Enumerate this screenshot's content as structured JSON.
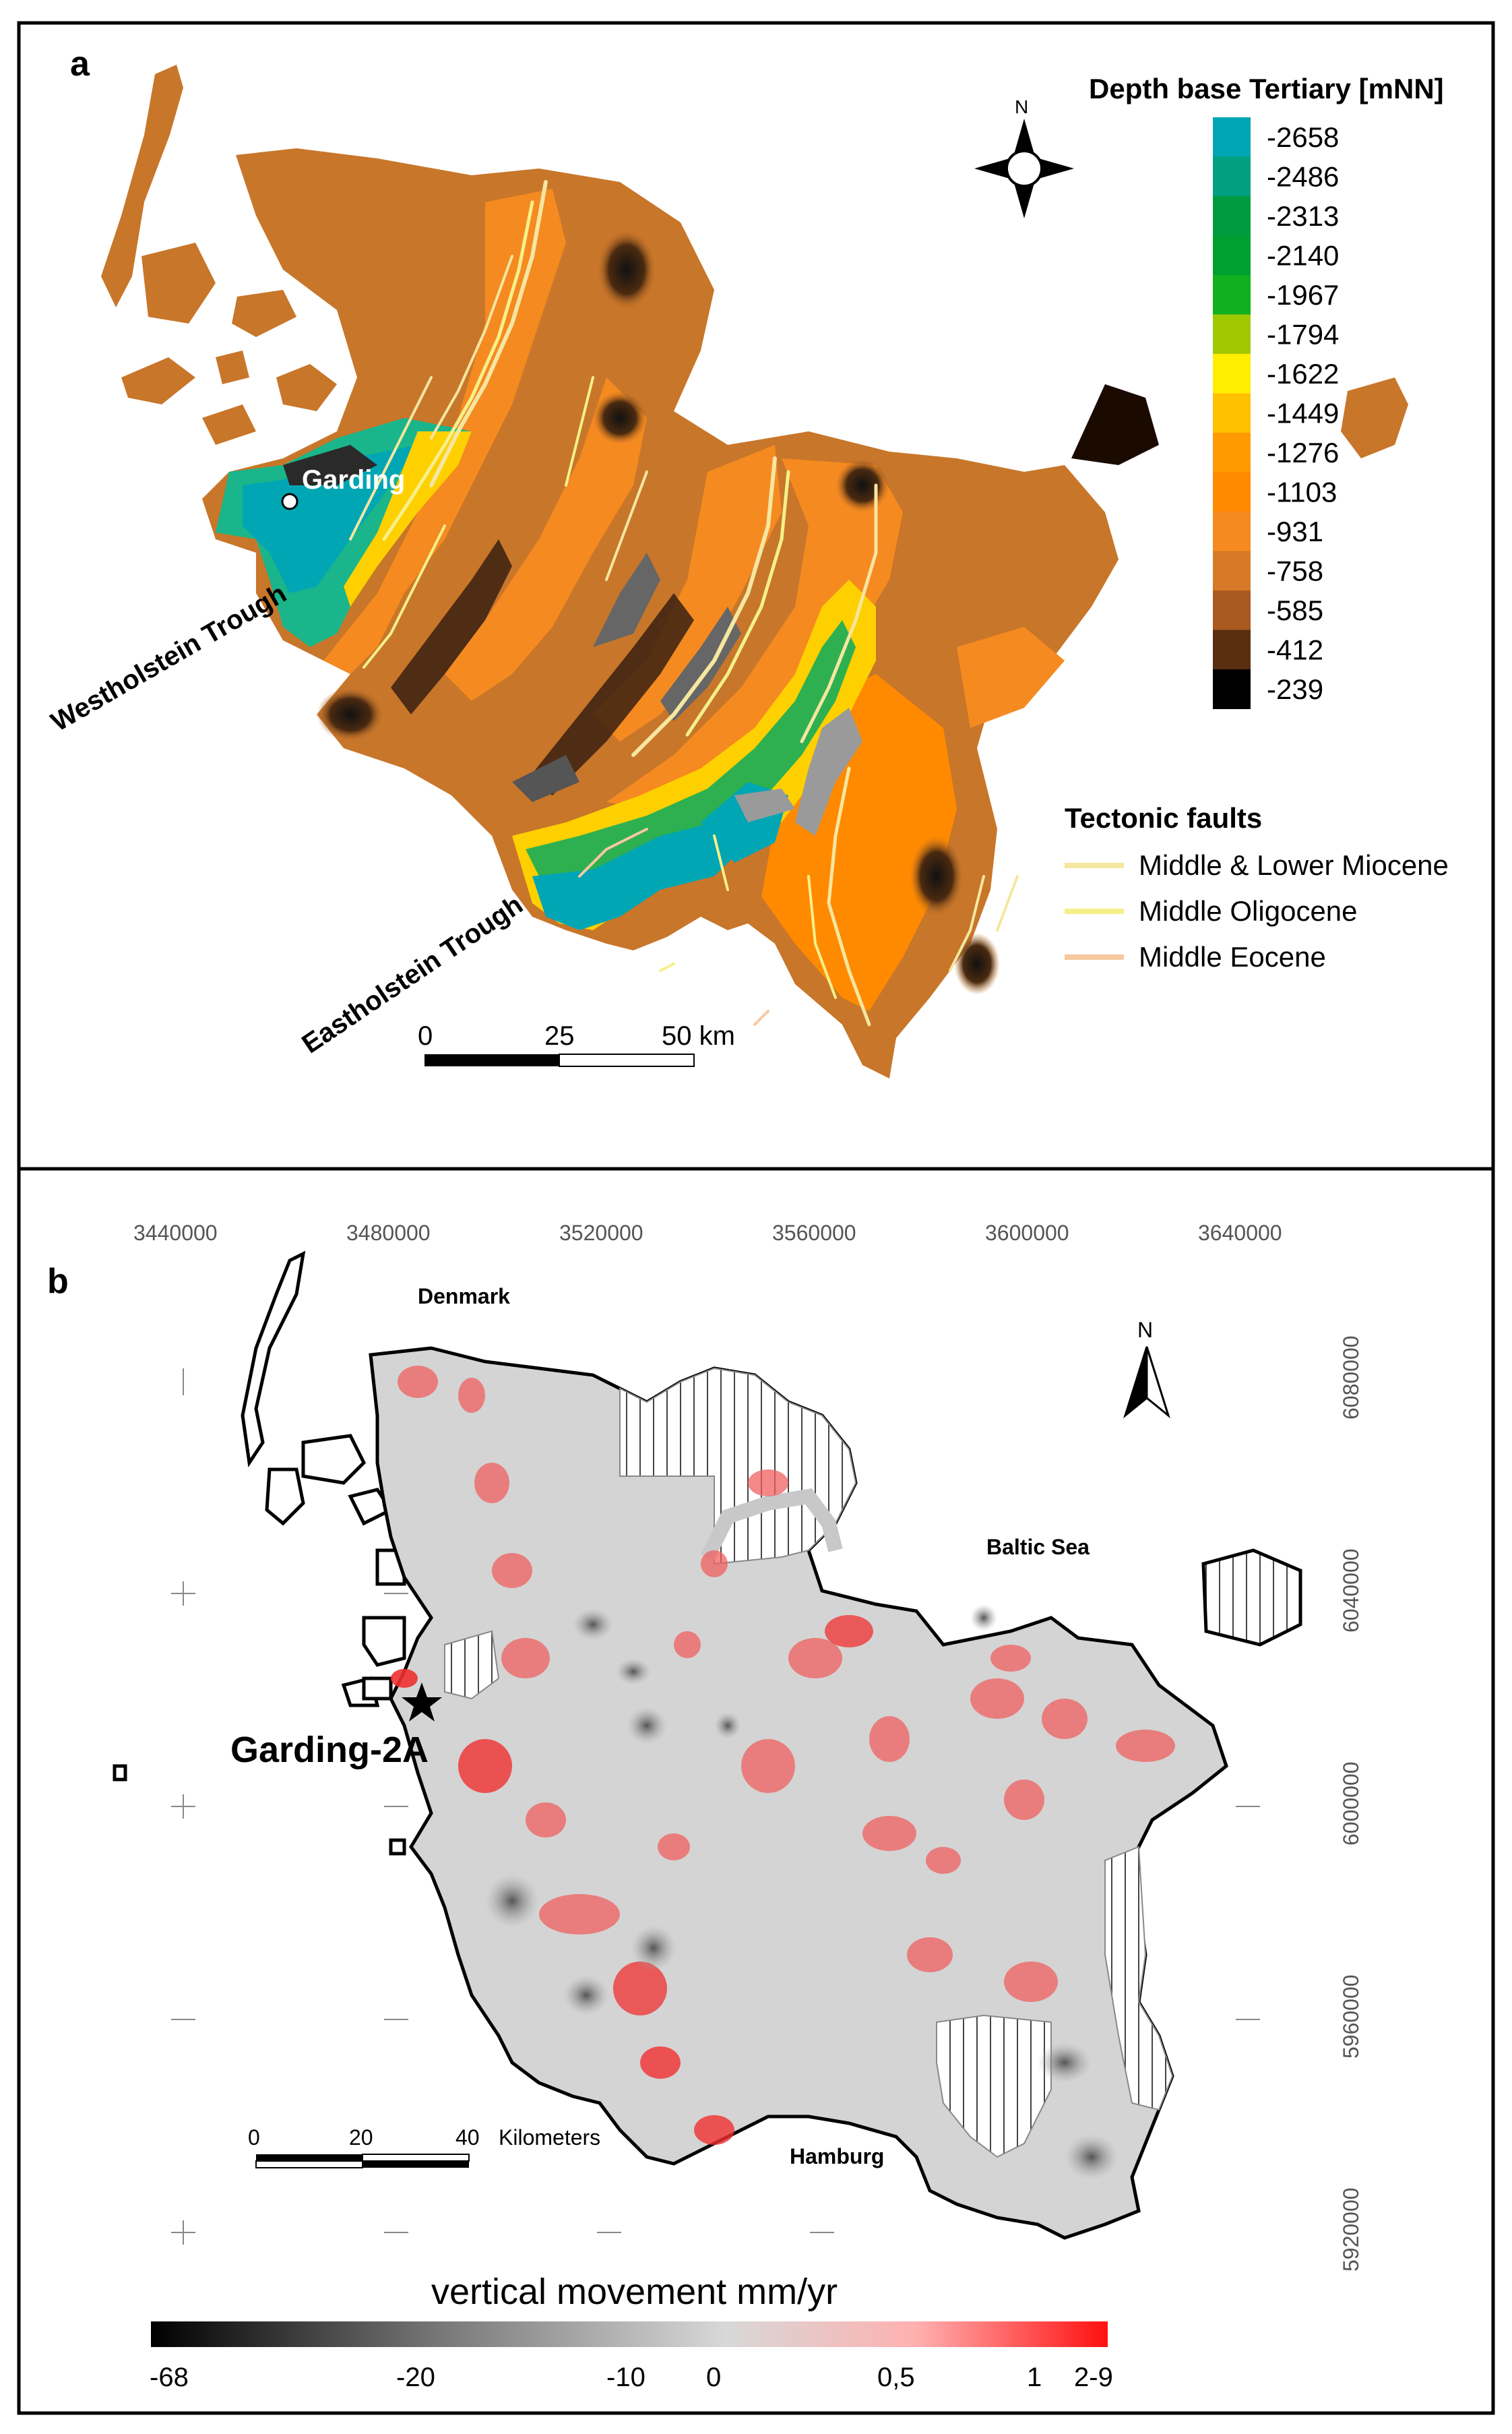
{
  "panel_a": {
    "label": "a",
    "legend_title": "Depth base Tertiary [mNN]",
    "depth_ramp": [
      {
        "value": "-2658",
        "color": "#00a6b4"
      },
      {
        "value": "-2486",
        "color": "#00a080"
      },
      {
        "value": "-2313",
        "color": "#009a40"
      },
      {
        "value": "-2140",
        "color": "#00a030"
      },
      {
        "value": "-1967",
        "color": "#10b020"
      },
      {
        "value": "-1794",
        "color": "#a0c800"
      },
      {
        "value": "-1622",
        "color": "#ffee00"
      },
      {
        "value": "-1449",
        "color": "#ffc000"
      },
      {
        "value": "-1276",
        "color": "#ff9a00"
      },
      {
        "value": "-1103",
        "color": "#ff8a00"
      },
      {
        "value": "-931",
        "color": "#f58a20"
      },
      {
        "value": "-758",
        "color": "#d67a28"
      },
      {
        "value": "-585",
        "color": "#a85a20"
      },
      {
        "value": "-412",
        "color": "#5a2e10"
      },
      {
        "value": "-239",
        "color": "#000000"
      }
    ],
    "faults_title": "Tectonic faults",
    "faults": [
      {
        "label": "Middle & Lower Miocene",
        "color": "#f5e6a0"
      },
      {
        "label": "Middle Oligocene",
        "color": "#f5f08a"
      },
      {
        "label": "Middle Eocene",
        "color": "#f8c8a0"
      }
    ],
    "place_garding": "Garding",
    "westholstein": "Westholstein Trough",
    "eastholstein": "Eastholstein Trough",
    "scale_ticks": [
      "0",
      "25",
      "50 km"
    ],
    "north": "N"
  },
  "panel_b": {
    "label": "b",
    "x_ticks": [
      "3440000",
      "3480000",
      "3520000",
      "3560000",
      "3600000",
      "3640000"
    ],
    "y_ticks": [
      "6080000",
      "6040000",
      "6000000",
      "5960000",
      "5920000"
    ],
    "denmark": "Denmark",
    "baltic_sea": "Baltic Sea",
    "hamburg": "Hamburg",
    "garding_2a": "Garding-2A",
    "north": "N",
    "scale_ticks": [
      "0",
      "20",
      "40"
    ],
    "scale_unit": "Kilometers",
    "colorbar_title": "vertical movement mm/yr",
    "colorbar_ticks": [
      "-68",
      "-20",
      "-10",
      "0",
      "0,5",
      "1",
      "2-9"
    ]
  }
}
